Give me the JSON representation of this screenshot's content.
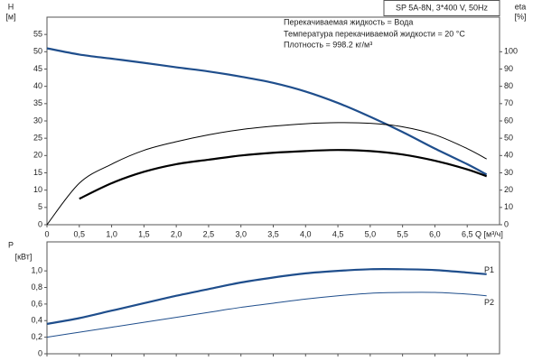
{
  "chart_data": [
    {
      "type": "line",
      "info_box": "SP 5A-8N, 3*400 V, 50Hz",
      "annotations": [
        "Перекачиваемая жидкость = Вода",
        "Температура перекачиваемой жидкости = 20 °C",
        "Плотность = 998.2 кг/м³"
      ],
      "y_label": [
        "H",
        "[м]"
      ],
      "y2_label": [
        "eta",
        "[%]"
      ],
      "x_label": "Q [м³/ч]",
      "x": [
        0,
        0.5,
        1,
        1.5,
        2,
        2.5,
        3,
        3.5,
        4,
        4.5,
        5,
        5.5,
        6,
        6.5,
        6.8
      ],
      "series": [
        {
          "color": "#1f4e8c",
          "values": [
            51,
            49.2,
            48,
            46.8,
            45.5,
            44.3,
            42.8,
            41,
            38.5,
            35.2,
            31.2,
            26.8,
            22,
            17.5,
            14.5
          ]
        },
        {
          "color": "#000000",
          "axis": "y2",
          "values": [
            0,
            24,
            35,
            43,
            48,
            52,
            55,
            57,
            58.4,
            59,
            58.6,
            56.6,
            52,
            44,
            38
          ]
        },
        {
          "color": "#000000",
          "axis": "y2",
          "values": [
            null,
            15,
            24,
            30.6,
            35,
            37.6,
            40,
            41.6,
            42.6,
            43.2,
            42.6,
            40.6,
            37,
            32,
            28
          ]
        }
      ],
      "xlim": [
        0,
        7
      ],
      "xticks": [
        0,
        {
          "value": 0.5,
          "label": "0,5"
        },
        {
          "value": 1,
          "label": "1,0"
        },
        {
          "value": 1.5,
          "label": "1,5"
        },
        {
          "value": 2,
          "label": "2,0"
        },
        {
          "value": 2.5,
          "label": "2,5"
        },
        {
          "value": 3,
          "label": "3,0"
        },
        {
          "value": 3.5,
          "label": "3,5"
        },
        {
          "value": 4,
          "label": "4,0"
        },
        {
          "value": 4.5,
          "label": "4,5"
        },
        {
          "value": 5,
          "label": "5,0"
        },
        {
          "value": 5.5,
          "label": "5,5"
        },
        {
          "value": 6,
          "label": "6,0"
        },
        {
          "value": 6.5,
          "label": "6,5"
        }
      ],
      "ylim": [
        0,
        60
      ],
      "yticks": [
        0,
        5,
        10,
        15,
        20,
        25,
        30,
        35,
        40,
        45,
        50,
        55
      ],
      "y2lim": [
        0,
        120
      ],
      "y2ticks": [
        0,
        10,
        20,
        30,
        40,
        50,
        60,
        70,
        80,
        90,
        100
      ]
    },
    {
      "type": "line",
      "y_label": [
        "P",
        "[кВт]"
      ],
      "x": [
        0,
        0.5,
        1,
        1.5,
        2,
        2.5,
        3,
        3.5,
        4,
        4.5,
        5,
        5.5,
        6,
        6.5,
        6.8
      ],
      "series": [
        {
          "name": "P1",
          "color": "#1f4e8c",
          "values": [
            0.36,
            0.43,
            0.52,
            0.61,
            0.7,
            0.78,
            0.86,
            0.92,
            0.97,
            1.0,
            1.02,
            1.02,
            1.01,
            0.98,
            0.96
          ]
        },
        {
          "name": "P2",
          "color": "#1f4e8c",
          "values": [
            0.2,
            0.26,
            0.32,
            0.38,
            0.44,
            0.5,
            0.56,
            0.61,
            0.66,
            0.7,
            0.73,
            0.74,
            0.74,
            0.72,
            0.7
          ]
        }
      ],
      "xlim": [
        0,
        7
      ],
      "ylim": [
        0,
        1.35
      ],
      "yticks": [
        0,
        {
          "value": 0.2,
          "label": "0,2"
        },
        {
          "value": 0.4,
          "label": "0,4"
        },
        {
          "value": 0.6,
          "label": "0,6"
        },
        {
          "value": 0.8,
          "label": "0,8"
        },
        {
          "value": 1,
          "label": "1,0"
        }
      ]
    }
  ]
}
